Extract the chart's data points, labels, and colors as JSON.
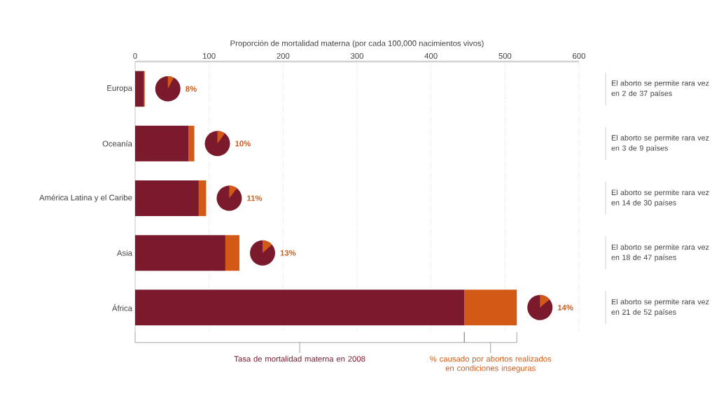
{
  "chart_data": {
    "type": "bar",
    "orientation": "horizontal",
    "stacked": true,
    "grid": "x",
    "xlabel": "Proporción de mortalidad materna (por cada 100,000 nacimientos vivos)",
    "categories": [
      "Europa",
      "Oceanía",
      "América Latina y el Caribe",
      "Asia",
      "África"
    ],
    "xlim": [
      0,
      600
    ],
    "xticks": [
      0,
      100,
      200,
      300,
      400,
      500,
      600
    ],
    "series": [
      {
        "name": "Tasa de mortalidad materna en 2008",
        "color": "#7b1a2c",
        "values": [
          12,
          72,
          86,
          122,
          445
        ]
      },
      {
        "name": "% causado por abortos realizados en condiciones inseguras",
        "color": "#d35a16",
        "values": [
          1,
          8,
          10,
          19,
          71
        ]
      }
    ],
    "annotations": [
      "8%",
      "10%",
      "11%",
      "13%",
      "14%",
      "El aborto se permite rara vez en 2 de 37 países",
      "El aborto se permite rara vez en 3 de 9 países",
      "El aborto se permite rara vez en 14 de 30 países",
      "El aborto se permite rara vez en 18 de 47 países",
      "El aborto se permite rara vez en 21 de 52 países"
    ]
  }
}
